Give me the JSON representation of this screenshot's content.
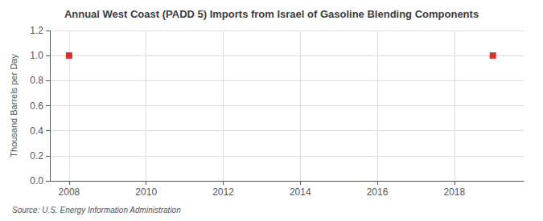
{
  "chart_data": {
    "type": "scatter",
    "title": "Annual West Coast (PADD 5) Imports from Israel of Gasoline Blending Components",
    "ylabel": "Thousand Barrels per Day",
    "source": "Source: U.S. Energy Information Administration",
    "x": [
      2008.0,
      2019.0
    ],
    "values": [
      1.0,
      1.0
    ],
    "color": "#cc0000",
    "marker": "square",
    "xlim": [
      2007.5,
      2019.8
    ],
    "ylim": [
      0.0,
      1.2
    ],
    "xticks": [
      2008,
      2010,
      2012,
      2014,
      2016,
      2018
    ],
    "yticks": [
      {
        "value": 0.0,
        "label": "0.0"
      },
      0.2,
      0.4,
      0.6,
      0.8,
      {
        "value": 1.0,
        "label": "1.0"
      },
      1.2
    ],
    "grid": true
  }
}
